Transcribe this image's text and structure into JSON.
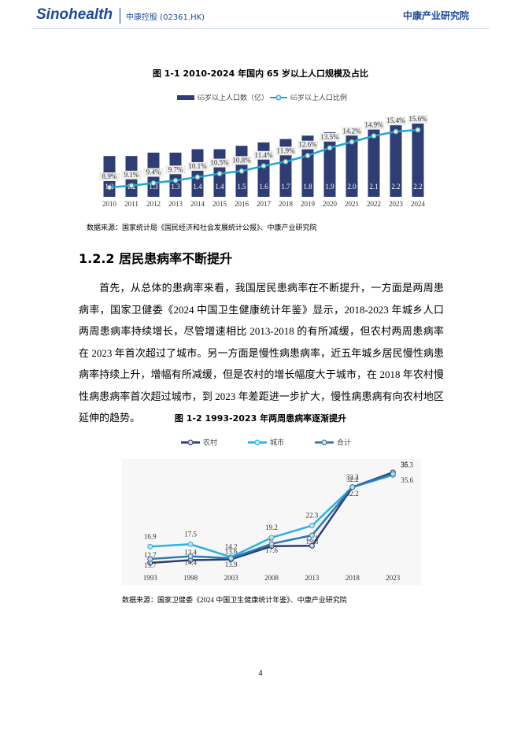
{
  "header": {
    "logo": "Sinohealth",
    "company": "中康控股 (02361.HK)",
    "institute": "中康产业研究院"
  },
  "chart_data": [
    {
      "type": "bar-line",
      "title": "图 1-1 2010-2024 年国内 65 岁以上人口规模及占比",
      "categories": [
        "2010",
        "2011",
        "2012",
        "2013",
        "2014",
        "2015",
        "2016",
        "2017",
        "2018",
        "2019",
        "2020",
        "2021",
        "2022",
        "2023",
        "2024"
      ],
      "series": [
        {
          "name": "65岁以上人口数（亿）",
          "type": "bar",
          "color": "#2e3d73",
          "values": [
            1.2,
            1.2,
            1.3,
            1.3,
            1.4,
            1.4,
            1.5,
            1.6,
            1.7,
            1.8,
            1.9,
            2.0,
            2.1,
            2.2,
            2.2
          ],
          "value_labels": [
            "1.2",
            "1.2",
            "1.3",
            "1.3",
            "1.4",
            "1.4",
            "1.5",
            "1.6",
            "1.7",
            "1.8",
            "1.9",
            "2.0",
            "2.1",
            "2.2",
            "2.2"
          ]
        },
        {
          "name": "65岁以上人口比例",
          "type": "line",
          "axis": "y2",
          "color": "#1fa3d8",
          "values": [
            8.9,
            9.1,
            9.4,
            9.7,
            10.1,
            10.5,
            10.8,
            11.4,
            11.9,
            12.6,
            13.5,
            14.2,
            14.9,
            15.4,
            15.6
          ],
          "value_labels": [
            "8.9%",
            "9.1%",
            "9.4%",
            "9.7%",
            "10.1%",
            "10.5%",
            "10.8%",
            "11.4%",
            "11.9%",
            "12.6%",
            "13.5%",
            "14.2%",
            "14.9%",
            "15.4%",
            "15.6%"
          ]
        }
      ],
      "source": "数据来源：国家统计局《国民经济和社会发展统计公报》、中康产业研究院"
    },
    {
      "type": "line",
      "title": "图 1-2 1993-2023 年两周患病率逐渐提升",
      "categories": [
        "1993",
        "1998",
        "2003",
        "2008",
        "2013",
        "2018",
        "2023"
      ],
      "series": [
        {
          "name": "农村",
          "color": "#2e3d73",
          "values": [
            12.7,
            13.4,
            13.6,
            17,
            17.1,
            32.2,
            36
          ]
        },
        {
          "name": "城市",
          "color": "#2ab3e0",
          "values": [
            16.9,
            17.5,
            14.2,
            19.2,
            22.3,
            32.2,
            35.3
          ]
        },
        {
          "name": "合计",
          "color": "#2b79b0",
          "values": [
            13.7,
            14.4,
            13.9,
            17.6,
            19.8,
            32.2,
            35.6
          ]
        }
      ],
      "source": "数据来源：国家卫健委《2024 中国卫生健康统计年鉴》、中康产业研究院"
    }
  ],
  "section": {
    "heading": "1.2.2 居民患病率不断提升",
    "paragraph": "首先，从总体的患病率来看，我国居民患病率在不断提升，一方面是两周患病率，国家卫健委《2024 中国卫生健康统计年鉴》显示，2018-2023 年城乡人口两周患病率持续增长，尽管增速相比 2013-2018 的有所减缓，但农村两周患病率在 2023 年首次超过了城市。另一方面是慢性病患病率，近五年城乡居民慢性病患病率持续上升，增幅有所减缓，但是农村的增长幅度大于城市，在 2018 年农村慢性病患病率首次超过城市，到 2023 年差距进一步扩大，慢性病患病有向农村地区延伸的趋势。"
  },
  "page_number": "4"
}
